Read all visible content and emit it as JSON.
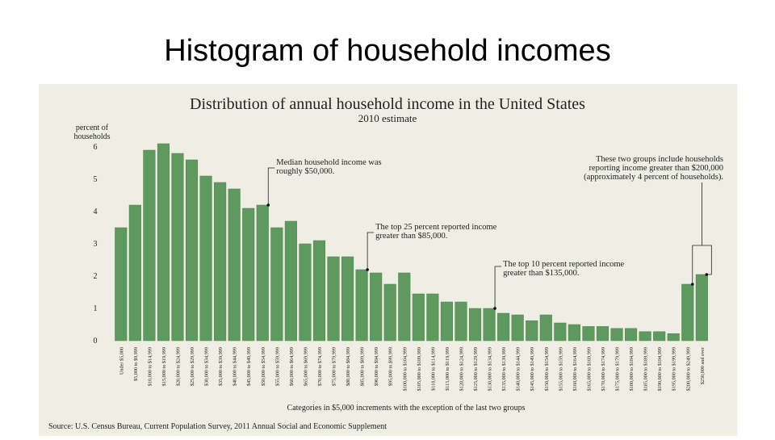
{
  "slide": {
    "title": "Histogram of household incomes"
  },
  "colors": {
    "bar": "#5e9a5e",
    "bar_edge": "#4c824c",
    "panel_bg": "#eeeee5",
    "text": "#222222"
  },
  "chart_data": {
    "type": "bar",
    "title": "Distribution of annual household income in the United States",
    "subtitle": "2010 estimate",
    "ylabel_lines": [
      "percent of",
      "households"
    ],
    "xlabel": "Categories in $5,000 increments with the exception of the last two groups",
    "source": "Source: U.S. Census Bureau, Current Population Survey, 2011 Annual Social and Economic Supplement",
    "ylim": [
      0,
      6
    ],
    "yticks": [
      0,
      1,
      2,
      3,
      4,
      5,
      6
    ],
    "grid": false,
    "categories": [
      "Under $5,000",
      "$5,000 to $9,999",
      "$10,000 to $14,999",
      "$15,000 to $19,999",
      "$20,000 to $24,999",
      "$25,000 to $29,999",
      "$30,000 to $34,999",
      "$35,000 to $39,999",
      "$40,000 to $44,999",
      "$45,000 to $49,999",
      "$50,000 to $54,999",
      "$55,000 to $59,999",
      "$60,000 to $64,999",
      "$65,000 to $69,999",
      "$70,000 to $74,999",
      "$75,000 to $79,999",
      "$80,000 to $84,999",
      "$85,000 to $89,999",
      "$90,000 to $94,999",
      "$95,000 to $99,999",
      "$100,000 to $104,999",
      "$105,000 to $109,999",
      "$110,000 to $114,999",
      "$115,000 to $119,999",
      "$120,000 to $124,999",
      "$125,000 to $129,999",
      "$130,000 to $134,999",
      "$135,000 to $139,999",
      "$140,000 to $144,999",
      "$145,000 to $149,999",
      "$150,000 to $154,999",
      "$155,000 to $159,999",
      "$160,000 to $164,999",
      "$165,000 to $169,999",
      "$170,000 to $174,999",
      "$175,000 to $179,999",
      "$180,000 to $184,999",
      "$185,000 to $189,999",
      "$190,000 to $194,999",
      "$195,000 to $199,999",
      "$200,000 to $249,999",
      "$250,000 and over"
    ],
    "values": [
      3.5,
      4.2,
      5.9,
      6.1,
      5.8,
      5.6,
      5.1,
      4.9,
      4.7,
      4.1,
      4.2,
      3.5,
      3.7,
      3.0,
      3.1,
      2.6,
      2.6,
      2.2,
      2.1,
      1.75,
      2.1,
      1.45,
      1.45,
      1.2,
      1.2,
      1.0,
      1.0,
      0.85,
      0.8,
      0.62,
      0.8,
      0.55,
      0.5,
      0.44,
      0.44,
      0.38,
      0.38,
      0.28,
      0.28,
      0.22,
      1.75,
      2.05
    ],
    "annotations": [
      {
        "lines": [
          "Median household income was",
          "roughly $50,000."
        ],
        "category_index": 10
      },
      {
        "lines": [
          "The top 25 percent reported income",
          "greater than $85,000."
        ],
        "category_index": 17
      },
      {
        "lines": [
          "The top 10 percent reported income",
          "greater than $135,000."
        ],
        "category_index": 26
      },
      {
        "lines": [
          "These two groups include households",
          "reporting income greater than $200,000",
          "(approximately 4 percent of households)."
        ],
        "category_indices": [
          40,
          41
        ]
      }
    ]
  }
}
